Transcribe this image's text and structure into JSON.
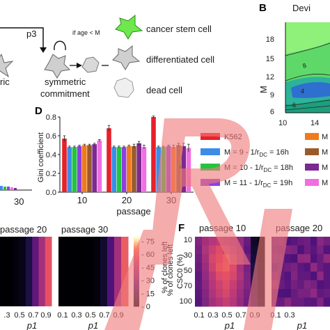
{
  "panel_letters": {
    "B": "B",
    "D": "D",
    "F": "F"
  },
  "schema": {
    "p3": "p3",
    "if_age": "if age < M",
    "left_text": "ric",
    "symmetric": "symmetric",
    "commitment": "commitment",
    "legend": [
      "cancer stem cell",
      "differentiated cell",
      "dead cell"
    ],
    "colors": {
      "stem": "#5fe14a",
      "diff": "#c8c8c8",
      "dead": "#ececec"
    }
  },
  "panel_b": {
    "title": "Devi",
    "ylabel": "M",
    "yticks": [
      "18",
      "15",
      "12",
      "9",
      "6"
    ],
    "xticks": [
      "10",
      "14"
    ],
    "contour_labels": [
      "8",
      "4",
      "6"
    ]
  },
  "panel_d_left_stub": {
    "tick": "30"
  },
  "chart_data": [
    {
      "type": "bar",
      "title": "",
      "xlabel": "passage",
      "ylabel": "Gini coefficient",
      "categories": [
        "10",
        "20",
        "30"
      ],
      "ylim": [
        0,
        0.8
      ],
      "yticks": [
        "0.0",
        "0.2",
        "0.4",
        "0.6",
        "0.8"
      ],
      "grid": false,
      "series": [
        {
          "name": "K562",
          "color": "#e8202a",
          "values": [
            0.57,
            0.68,
            0.8
          ],
          "errors": [
            0.03,
            0.03,
            0.01
          ]
        },
        {
          "name": "M = 9  - 1/r_DC = 16h",
          "color": "#3b8de8",
          "values": [
            0.48,
            0.48,
            0.48
          ],
          "errors": [
            0.01,
            0.01,
            0.01
          ]
        },
        {
          "name": "M = 10 - 1/r_DC = 18h",
          "color": "#22c440",
          "values": [
            0.48,
            0.48,
            0.48
          ],
          "errors": [
            0.01,
            0.01,
            0.01
          ]
        },
        {
          "name": "M = 11 - 1/r_DC = 19h",
          "color": "#8e3fe0",
          "values": [
            0.49,
            0.48,
            0.49
          ],
          "errors": [
            0.01,
            0.01,
            0.01
          ]
        },
        {
          "name": "",
          "color": "#f07a1c",
          "values": [
            0.5,
            0.49,
            0.48
          ],
          "errors": [
            0.01,
            0.01,
            0.02
          ]
        },
        {
          "name": "",
          "color": "#9a5b2a",
          "values": [
            0.5,
            0.49,
            0.5
          ],
          "errors": [
            0.01,
            0.02,
            0.02
          ]
        },
        {
          "name": "",
          "color": "#7a2a90",
          "values": [
            0.51,
            0.52,
            0.49
          ],
          "errors": [
            0.01,
            0.02,
            0.03
          ]
        },
        {
          "name": "",
          "color": "#f06fe0",
          "values": [
            0.55,
            0.48,
            0.47
          ],
          "errors": [
            0.01,
            0.02,
            0.04
          ]
        }
      ],
      "legend_labels": [
        {
          "main": "K562",
          "sub": ""
        },
        {
          "main": "M = 9  - 1/r",
          "sub": "DC",
          "tail": " = 16h"
        },
        {
          "main": "M = 10 - 1/r",
          "sub": "DC",
          "tail": " = 18h"
        },
        {
          "main": "M = 11 - 1/r",
          "sub": "DC",
          "tail": " = 19h"
        }
      ],
      "legend_right_stubs": [
        "M",
        "M",
        "M",
        "M"
      ]
    },
    {
      "type": "heatmap",
      "title": "passage 20",
      "xlabel": "p1",
      "xticks": [
        ".3",
        "0.5",
        "0.7",
        "0.9"
      ],
      "description_values_left_to_right": [
        0.0,
        0.0,
        0.02,
        0.05,
        0.15,
        0.35,
        0.55,
        0.72
      ]
    },
    {
      "type": "heatmap",
      "title": "passage 30",
      "xlabel": "p1",
      "xticks": [
        "0.1",
        "0.3",
        "0.5",
        "0.7",
        "0.9"
      ],
      "values_left_to_right": [
        0.0,
        0.0,
        0.0,
        0.0,
        0.0,
        0.02,
        0.1,
        0.3,
        0.55,
        0.75
      ]
    },
    {
      "type": "heatmap",
      "title": "passage 10",
      "xlabel": "p1",
      "ylabel": "CSC0 (%)",
      "yticks": [
        "10",
        "30",
        "50",
        "70",
        "100"
      ],
      "xticks": [
        "0.1",
        "0.3",
        "0.5",
        "0.7",
        "0.9"
      ],
      "colorbar": {
        "label": "% of clones left",
        "ticks": [
          "75",
          "60",
          "45",
          "30",
          "15",
          "0"
        ],
        "range": [
          0,
          80
        ]
      },
      "grid_values": [
        [
          0.45,
          0.55,
          0.6,
          0.62,
          0.58,
          0.55,
          0.5,
          0.38,
          0.08,
          0.02
        ],
        [
          0.42,
          0.58,
          0.65,
          0.7,
          0.66,
          0.6,
          0.52,
          0.35,
          0.1,
          0.03
        ],
        [
          0.4,
          0.55,
          0.68,
          0.72,
          0.75,
          0.66,
          0.55,
          0.4,
          0.12,
          0.02
        ],
        [
          0.38,
          0.52,
          0.66,
          0.74,
          0.76,
          0.7,
          0.56,
          0.42,
          0.15,
          0.04
        ],
        [
          0.35,
          0.5,
          0.62,
          0.7,
          0.72,
          0.68,
          0.58,
          0.44,
          0.16,
          0.05
        ],
        [
          0.36,
          0.48,
          0.6,
          0.66,
          0.7,
          0.64,
          0.55,
          0.45,
          0.18,
          0.06
        ],
        [
          0.34,
          0.46,
          0.58,
          0.64,
          0.68,
          0.62,
          0.52,
          0.42,
          0.2,
          0.06
        ],
        [
          0.32,
          0.44,
          0.55,
          0.6,
          0.64,
          0.6,
          0.5,
          0.4,
          0.22,
          0.08
        ]
      ]
    },
    {
      "type": "heatmap",
      "title": "passage 20",
      "xlabel": "p1",
      "xticks": [
        "0.1",
        "0.3"
      ],
      "note": "mostly dark purple"
    }
  ],
  "watermark_text": "RETRACTED"
}
